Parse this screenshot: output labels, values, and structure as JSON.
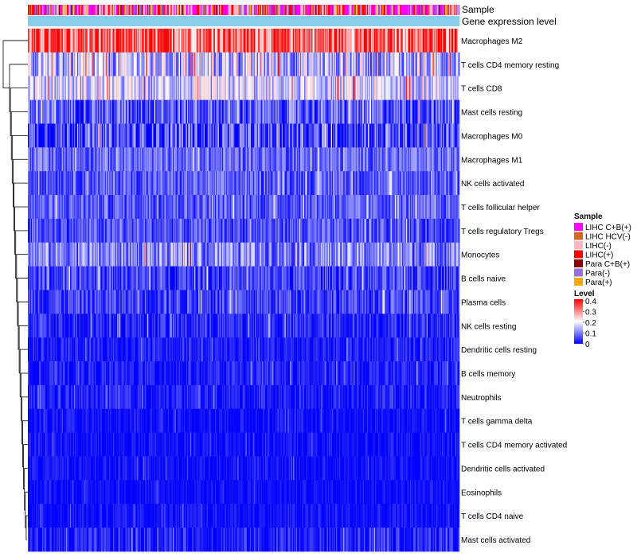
{
  "chart_data": {
    "type": "heatmap",
    "title": "",
    "annotations": {
      "sample_track_label": "Sample",
      "expression_track_label": "Gene expression level"
    },
    "rows": [
      {
        "name": "Macrophages M2",
        "mean": 0.32,
        "spread": 0.12
      },
      {
        "name": "T cells CD4 memory resting",
        "mean": 0.14,
        "spread": 0.11
      },
      {
        "name": "T cells CD8",
        "mean": 0.16,
        "spread": 0.09
      },
      {
        "name": "Mast cells resting",
        "mean": 0.07,
        "spread": 0.08
      },
      {
        "name": "Macrophages M0",
        "mean": 0.05,
        "spread": 0.1
      },
      {
        "name": "Macrophages M1",
        "mean": 0.08,
        "spread": 0.06
      },
      {
        "name": "NK cells activated",
        "mean": 0.07,
        "spread": 0.06
      },
      {
        "name": "T cells follicular helper",
        "mean": 0.07,
        "spread": 0.06
      },
      {
        "name": "T cells regulatory  Tregs",
        "mean": 0.06,
        "spread": 0.06
      },
      {
        "name": "Monocytes",
        "mean": 0.1,
        "spread": 0.08
      },
      {
        "name": "B cells naive",
        "mean": 0.05,
        "spread": 0.06
      },
      {
        "name": "Plasma cells",
        "mean": 0.05,
        "spread": 0.06
      },
      {
        "name": "NK cells resting",
        "mean": 0.03,
        "spread": 0.05
      },
      {
        "name": "Dendritic cells resting",
        "mean": 0.02,
        "spread": 0.04
      },
      {
        "name": "B cells memory",
        "mean": 0.02,
        "spread": 0.04
      },
      {
        "name": "Neutrophils",
        "mean": 0.02,
        "spread": 0.04
      },
      {
        "name": "T cells gamma delta",
        "mean": 0.01,
        "spread": 0.03
      },
      {
        "name": "T cells CD4 memory activated",
        "mean": 0.01,
        "spread": 0.03
      },
      {
        "name": "Dendritic cells activated",
        "mean": 0.01,
        "spread": 0.03
      },
      {
        "name": "Eosinophils",
        "mean": 0.01,
        "spread": 0.02
      },
      {
        "name": "T cells CD4 naive",
        "mean": 0.01,
        "spread": 0.03
      },
      {
        "name": "Mast cells activated",
        "mean": 0.02,
        "spread": 0.05
      }
    ],
    "n_samples": 420,
    "value_range": [
      0,
      0.4
    ],
    "color_scale": {
      "stops": [
        0,
        0.2,
        0.4
      ],
      "colors": [
        "#0000ff",
        "#ffffff",
        "#ff0000"
      ]
    },
    "legend": {
      "position": "right",
      "sample_title": "Sample",
      "sample_groups": [
        {
          "label": "LIHC C+B(+)",
          "color": "#ff00ff"
        },
        {
          "label": "LIHC HCV(-)",
          "color": "#d2691e"
        },
        {
          "label": "LIHC(-)",
          "color": "#ffb6c1"
        },
        {
          "label": "LIHC(+)",
          "color": "#ff0000"
        },
        {
          "label": "Para C+B(+)",
          "color": "#8b0000"
        },
        {
          "label": "Para(-)",
          "color": "#9370db"
        },
        {
          "label": "Para(+)",
          "color": "#ffa500"
        }
      ],
      "level_title": "Level",
      "level_ticks": [
        0.4,
        0.3,
        0.2,
        0.1,
        0
      ]
    },
    "expression_color": "#87ceeb"
  }
}
